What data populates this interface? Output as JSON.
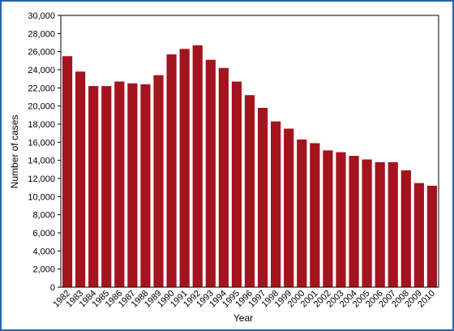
{
  "chart_data": {
    "type": "bar",
    "x_label": "Year",
    "y_label": "Number of cases",
    "categories": [
      "1982",
      "1983",
      "1984",
      "1985",
      "1986",
      "1987",
      "1988",
      "1989",
      "1990",
      "1991",
      "1992",
      "1993",
      "1994",
      "1995",
      "1996",
      "1997",
      "1998",
      "1999",
      "2000",
      "2001",
      "2002",
      "2003",
      "2004",
      "2005",
      "2006",
      "2007",
      "2008",
      "2009",
      "2010"
    ],
    "values": [
      25500,
      23800,
      22200,
      22200,
      22700,
      22500,
      22400,
      23400,
      25700,
      26300,
      26700,
      25100,
      24200,
      22700,
      21200,
      19800,
      18300,
      17500,
      16300,
      15900,
      15100,
      14900,
      14500,
      14100,
      13800,
      13800,
      12900,
      11500,
      11200
    ],
    "color": "#a3141e",
    "ylim": [
      0,
      30000
    ],
    "yticks": [
      0,
      {
        "value": 2000,
        "label": "2,000"
      },
      {
        "value": 4000,
        "label": "4,000"
      },
      {
        "value": 6000,
        "label": "6,000"
      },
      {
        "value": 8000,
        "label": "8,000"
      },
      {
        "value": 10000,
        "label": "10,000"
      },
      {
        "value": 12000,
        "label": "12,000"
      },
      {
        "value": 14000,
        "label": "14,000"
      },
      {
        "value": 16000,
        "label": "16,000"
      },
      {
        "value": 18000,
        "label": "18,000"
      },
      {
        "value": 20000,
        "label": "20,000"
      },
      {
        "value": 22000,
        "label": "22,000"
      },
      {
        "value": 24000,
        "label": "24,000"
      },
      {
        "value": 26000,
        "label": "26,000"
      },
      {
        "value": 28000,
        "label": "28,000"
      },
      {
        "value": 30000,
        "label": "30,000"
      }
    ],
    "grid": false
  }
}
